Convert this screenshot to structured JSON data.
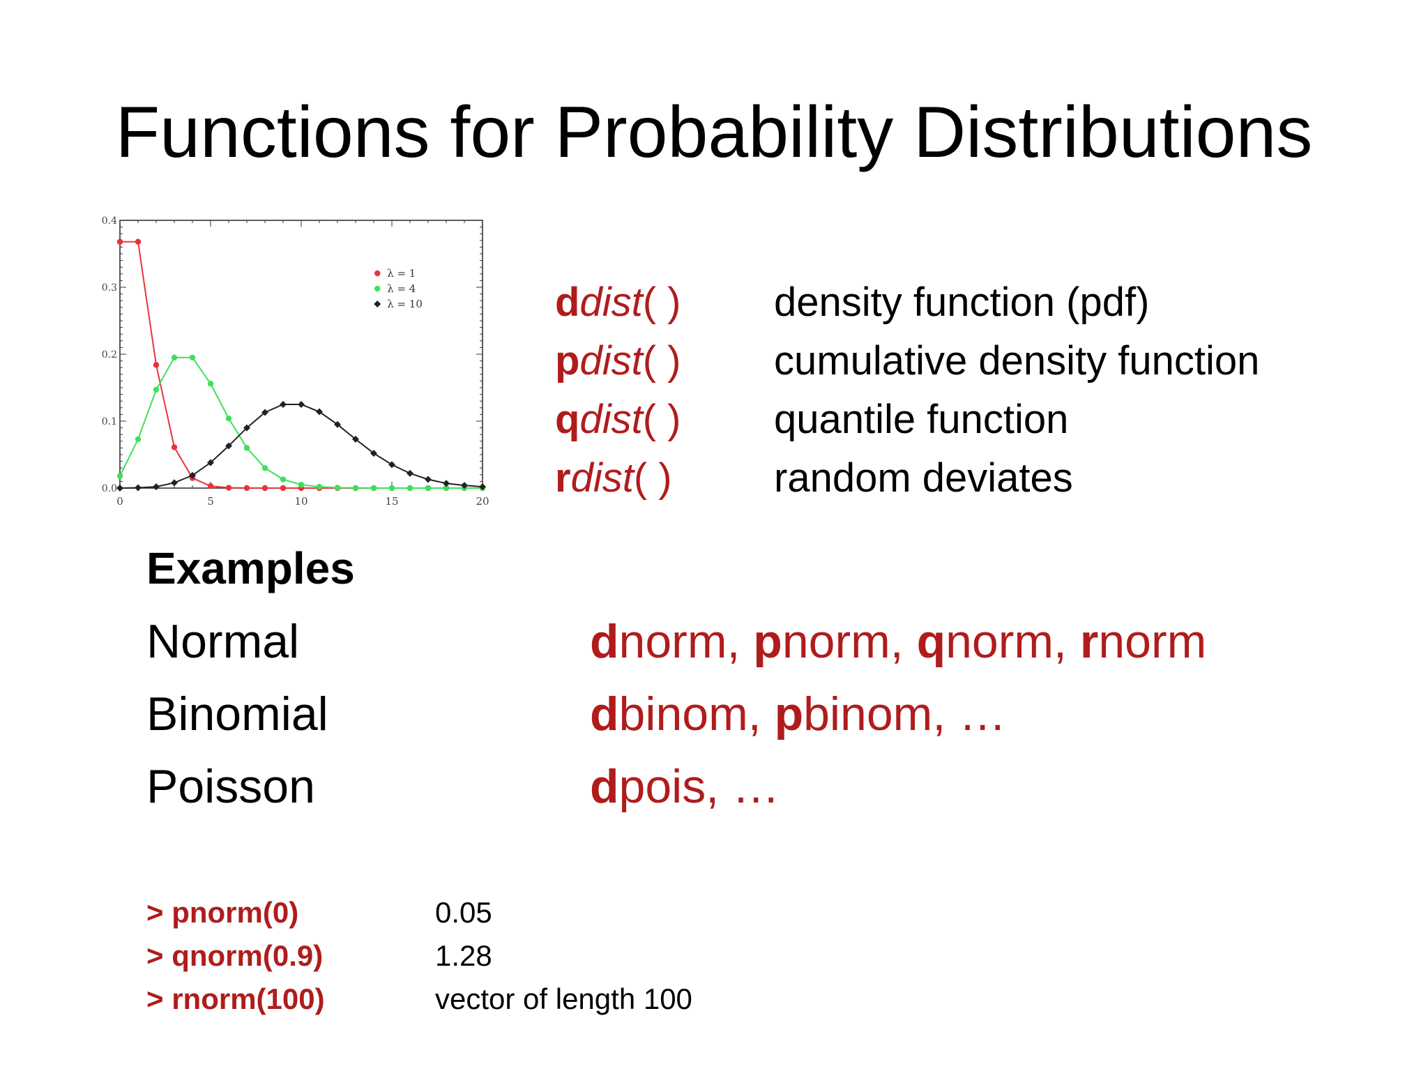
{
  "slide": {
    "title": "Functions for Probability Distributions"
  },
  "functions": [
    {
      "lead": "d",
      "rest": "dist",
      "paren": "( )",
      "desc": "density function (pdf)"
    },
    {
      "lead": "p",
      "rest": "dist",
      "paren": "( )",
      "desc": "cumulative density function"
    },
    {
      "lead": "q",
      "rest": "dist",
      "paren": "( )",
      "desc": "quantile function"
    },
    {
      "lead": "r",
      "rest": "dist",
      "paren": "( )",
      "desc": "random deviates"
    }
  ],
  "examples": {
    "heading": "Examples",
    "rows": [
      {
        "name": "Normal",
        "fns": [
          {
            "lead": "d",
            "rest": "norm",
            "sep": ", "
          },
          {
            "lead": "p",
            "rest": "norm",
            "sep": ", "
          },
          {
            "lead": "q",
            "rest": "norm",
            "sep": ", "
          },
          {
            "lead": "r",
            "rest": "norm",
            "sep": ""
          }
        ]
      },
      {
        "name": "Binomial",
        "fns": [
          {
            "lead": "d",
            "rest": "binom",
            "sep": ", "
          },
          {
            "lead": "p",
            "rest": "binom",
            "sep": ", …"
          }
        ]
      },
      {
        "name": "Poisson",
        "fns": [
          {
            "lead": "d",
            "rest": "pois",
            "sep": ", …"
          }
        ]
      }
    ]
  },
  "code_examples": [
    {
      "cmd": "> pnorm(0)",
      "out": "0.05"
    },
    {
      "cmd": "> qnorm(0.9)",
      "out": "1.28"
    },
    {
      "cmd": "> rnorm(100)",
      "out": "vector of length 100"
    }
  ],
  "colors": {
    "accent_red": "#b01c1c",
    "series_red": "#e8333c",
    "series_green": "#3ee05a",
    "series_black": "#222222"
  },
  "chart_data": {
    "type": "line",
    "xlim": [
      0,
      20
    ],
    "ylim": [
      0,
      0.4
    ],
    "x_ticks": [
      0,
      5,
      10,
      15,
      20
    ],
    "y_ticks": [
      0.0,
      0.1,
      0.2,
      0.3,
      0.4
    ],
    "x_tick_labels": [
      "0",
      "5",
      "10",
      "15",
      "20"
    ],
    "y_tick_labels": [
      "0.0",
      "0.1",
      "0.2",
      "0.3",
      "0.4"
    ],
    "legend_position": "top-right",
    "x": [
      0,
      1,
      2,
      3,
      4,
      5,
      6,
      7,
      8,
      9,
      10,
      11,
      12,
      13,
      14,
      15,
      16,
      17,
      18,
      19,
      20
    ],
    "series": [
      {
        "name": "λ = 1",
        "color": "#e8333c",
        "marker": "circle",
        "values": [
          0.368,
          0.368,
          0.184,
          0.061,
          0.015,
          0.003,
          0.0005,
          0.0001,
          0,
          0,
          0,
          0,
          0,
          0,
          0,
          0,
          0,
          0,
          0,
          0,
          0
        ]
      },
      {
        "name": "λ = 4",
        "color": "#3ee05a",
        "marker": "circle",
        "values": [
          0.018,
          0.073,
          0.147,
          0.195,
          0.195,
          0.156,
          0.104,
          0.06,
          0.03,
          0.013,
          0.005,
          0.002,
          0.0006,
          0.0002,
          0,
          0,
          0,
          0,
          0,
          0,
          0
        ]
      },
      {
        "name": "λ = 10",
        "color": "#222222",
        "marker": "diamond",
        "values": [
          5e-05,
          0.0005,
          0.002,
          0.008,
          0.019,
          0.038,
          0.063,
          0.09,
          0.113,
          0.125,
          0.125,
          0.114,
          0.095,
          0.073,
          0.052,
          0.035,
          0.022,
          0.013,
          0.007,
          0.004,
          0.002
        ]
      }
    ]
  }
}
